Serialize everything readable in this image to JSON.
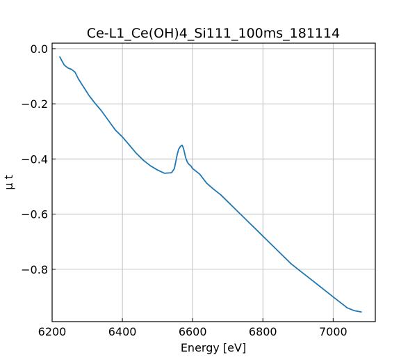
{
  "chart_data": {
    "type": "line",
    "title": "Ce-L1_Ce(OH)4_Si111_100ms_181114",
    "xlabel": "Energy [eV]",
    "ylabel": "μ t",
    "xlim": [
      6200,
      7120
    ],
    "ylim": [
      -0.99,
      0.02
    ],
    "xticks": [
      6200,
      6400,
      6600,
      6800,
      7000
    ],
    "yticks": [
      0.0,
      -0.2,
      -0.4,
      -0.6,
      -0.8
    ],
    "ytick_labels": [
      "0.0",
      "−0.2",
      "−0.4",
      "−0.6",
      "−0.8"
    ],
    "grid": true,
    "series": [
      {
        "color": "#1f77b4",
        "x": [
          6222,
          6228,
          6235,
          6245,
          6255,
          6265,
          6275,
          6290,
          6305,
          6320,
          6340,
          6360,
          6380,
          6400,
          6420,
          6440,
          6460,
          6480,
          6500,
          6520,
          6540,
          6548,
          6552,
          6556,
          6560,
          6565,
          6570,
          6573,
          6576,
          6580,
          6585,
          6590,
          6595,
          6600,
          6620,
          6640,
          6660,
          6680,
          6700,
          6720,
          6740,
          6760,
          6780,
          6800,
          6820,
          6840,
          6860,
          6880,
          6900,
          6920,
          6940,
          6960,
          6980,
          7000,
          7020,
          7040,
          7060,
          7080
        ],
        "y": [
          -0.03,
          -0.045,
          -0.06,
          -0.07,
          -0.075,
          -0.085,
          -0.11,
          -0.14,
          -0.17,
          -0.195,
          -0.225,
          -0.26,
          -0.295,
          -0.32,
          -0.35,
          -0.38,
          -0.405,
          -0.425,
          -0.44,
          -0.452,
          -0.45,
          -0.435,
          -0.41,
          -0.385,
          -0.365,
          -0.355,
          -0.35,
          -0.358,
          -0.372,
          -0.395,
          -0.412,
          -0.42,
          -0.425,
          -0.435,
          -0.455,
          -0.488,
          -0.51,
          -0.53,
          -0.555,
          -0.58,
          -0.605,
          -0.63,
          -0.655,
          -0.68,
          -0.705,
          -0.73,
          -0.755,
          -0.78,
          -0.8,
          -0.82,
          -0.84,
          -0.86,
          -0.88,
          -0.9,
          -0.92,
          -0.94,
          -0.95,
          -0.955
        ]
      }
    ]
  }
}
